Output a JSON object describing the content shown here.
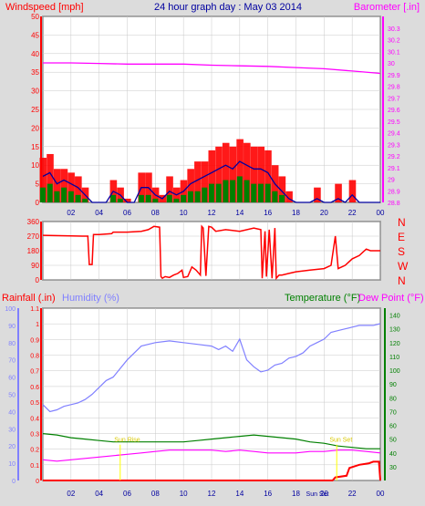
{
  "header": {
    "left": "Windspeed [mph]",
    "center": "24 hour graph day : May 03 2014",
    "right": "Barometer [.in]"
  },
  "colors": {
    "background": "#dcdcdc",
    "plot_bg": "#ffffff",
    "grid": "#c8c8c8",
    "wind_gust": "#ff0000",
    "wind_avg": "#0000a0",
    "wind_speed": "#008000",
    "barometer": "#ff00ff",
    "direction": "#ff0000",
    "humidity": "#8080ff",
    "temperature": "#008000",
    "dewpoint": "#ff00ff",
    "rain": "#ff0000",
    "sun": "#ffff00"
  },
  "x_ticks": [
    "02",
    "04",
    "06",
    "08",
    "10",
    "12",
    "14",
    "16",
    "18",
    "20",
    "22",
    "00"
  ],
  "chart_data": [
    {
      "type": "line",
      "panel": "wind-barometer",
      "xlabel": "hour",
      "ylabel_left": "Windspeed [mph]",
      "ylabel_right": "Barometer [.in]",
      "xlim": [
        0,
        24
      ],
      "ylim_left": [
        0,
        50
      ],
      "ylim_right": [
        28.8,
        30.4
      ],
      "yticks_left": [
        0,
        5,
        10,
        15,
        20,
        25,
        30,
        35,
        40,
        45,
        50
      ],
      "yticks_right": [
        "28.8",
        "28.9",
        "29",
        "29.1",
        "29.2",
        "29.3",
        "29.4",
        "29.5",
        "29.6",
        "29.7",
        "29.8",
        "29.9",
        "30",
        "30.1",
        "30.2",
        "30.3"
      ],
      "grid": true,
      "series": [
        {
          "name": "gust",
          "axis": "left",
          "x": [
            0,
            0.5,
            1,
            1.5,
            2,
            2.5,
            3,
            3.5,
            4,
            4.5,
            5,
            5.5,
            6,
            6.5,
            7,
            7.5,
            8,
            8.5,
            9,
            9.5,
            10,
            10.5,
            11,
            11.5,
            12,
            12.5,
            13,
            13.5,
            14,
            14.5,
            15,
            15.5,
            16,
            16.5,
            17,
            17.5,
            18,
            18.5,
            19,
            19.5,
            20,
            20.5,
            21,
            21.5,
            22,
            22.5,
            23,
            23.5,
            24
          ],
          "values": [
            12,
            13,
            9,
            9,
            8,
            7,
            4,
            0,
            0,
            0,
            6,
            4,
            1,
            0,
            8,
            8,
            4,
            2,
            7,
            4,
            6,
            9,
            11,
            11,
            14,
            15,
            16,
            15,
            17,
            16,
            15,
            15,
            14,
            10,
            7,
            3,
            0,
            0,
            0,
            4,
            0,
            0,
            5,
            0,
            6,
            0,
            0,
            0,
            0
          ]
        },
        {
          "name": "average",
          "axis": "left",
          "x": [
            0,
            0.5,
            1,
            1.5,
            2,
            2.5,
            3,
            3.5,
            4,
            4.5,
            5,
            5.5,
            6,
            6.5,
            7,
            7.5,
            8,
            8.5,
            9,
            9.5,
            10,
            10.5,
            11,
            11.5,
            12,
            12.5,
            13,
            13.5,
            14,
            14.5,
            15,
            15.5,
            16,
            16.5,
            17,
            17.5,
            18,
            18.5,
            19,
            19.5,
            20,
            20.5,
            21,
            21.5,
            22,
            22.5,
            23,
            23.5,
            24
          ],
          "values": [
            7,
            8,
            5,
            6,
            5,
            4,
            2,
            0,
            0,
            0,
            3,
            2,
            0,
            0,
            4,
            4,
            2,
            1,
            3,
            2,
            3,
            5,
            6,
            7,
            8,
            9,
            10,
            9,
            11,
            10,
            9,
            9,
            8,
            5,
            3,
            1,
            0,
            0,
            0,
            1,
            0,
            0,
            1,
            0,
            2,
            0,
            0,
            0,
            0
          ]
        },
        {
          "name": "speed",
          "axis": "left",
          "x": [
            0,
            0.5,
            1,
            1.5,
            2,
            2.5,
            3,
            3.5,
            4,
            4.5,
            5,
            5.5,
            6,
            6.5,
            7,
            7.5,
            8,
            8.5,
            9,
            9.5,
            10,
            10.5,
            11,
            11.5,
            12,
            12.5,
            13,
            13.5,
            14,
            14.5,
            15,
            15.5,
            16,
            16.5,
            17,
            17.5,
            18,
            18.5,
            19,
            19.5,
            20,
            20.5,
            21,
            21.5,
            22,
            22.5,
            23,
            23.5,
            24
          ],
          "values": [
            4,
            5,
            3,
            4,
            3,
            2,
            1,
            0,
            0,
            0,
            2,
            1,
            0,
            0,
            2,
            2,
            1,
            0,
            2,
            1,
            2,
            3,
            3,
            4,
            5,
            5,
            6,
            6,
            7,
            6,
            5,
            5,
            5,
            3,
            2,
            0,
            0,
            0,
            0,
            0,
            0,
            0,
            0,
            0,
            0,
            0,
            0,
            0,
            0
          ]
        },
        {
          "name": "barometer",
          "axis": "right",
          "x": [
            0,
            2,
            4,
            6,
            8,
            10,
            12,
            14,
            16,
            18,
            20,
            22,
            24
          ],
          "values": [
            30.0,
            30.0,
            29.995,
            29.99,
            29.99,
            29.99,
            29.98,
            29.975,
            29.97,
            29.96,
            29.95,
            29.93,
            29.91
          ]
        }
      ]
    },
    {
      "type": "line",
      "panel": "wind-direction",
      "xlabel": "hour",
      "ylabel": "direction",
      "xlim": [
        0,
        24
      ],
      "ylim": [
        0,
        360
      ],
      "yticks": [
        0,
        90,
        180,
        270,
        360
      ],
      "compass": [
        "N",
        "W",
        "S",
        "E",
        "N"
      ],
      "grid": true,
      "series": [
        {
          "name": "direction",
          "x": [
            0,
            2.8,
            3.2,
            3.3,
            3.5,
            3.6,
            4,
            4.9,
            5,
            6,
            7,
            7.5,
            7.9,
            8.3,
            8.4,
            8.5,
            8.7,
            9,
            9.3,
            9.6,
            9.9,
            10,
            10.3,
            10.6,
            10.9,
            11.2,
            11.3,
            11.4,
            11.6,
            11.8,
            12,
            12.3,
            13,
            14,
            15,
            15.5,
            15.6,
            15.8,
            15.9,
            16.1,
            16.3,
            16.5,
            16.6,
            16.8,
            17,
            17.5,
            18,
            19,
            20,
            20.5,
            20.8,
            21,
            21.5,
            22,
            22.5,
            23,
            23.3,
            24
          ],
          "values": [
            275,
            270,
            270,
            95,
            95,
            280,
            280,
            285,
            295,
            295,
            300,
            310,
            330,
            325,
            20,
            10,
            20,
            15,
            30,
            40,
            60,
            15,
            20,
            80,
            60,
            30,
            330,
            320,
            25,
            330,
            325,
            300,
            310,
            300,
            320,
            310,
            10,
            300,
            20,
            310,
            10,
            320,
            10,
            30,
            30,
            40,
            50,
            60,
            70,
            90,
            270,
            70,
            90,
            130,
            150,
            190,
            180,
            180
          ]
        }
      ]
    },
    {
      "type": "line",
      "panel": "humidity-temperature-rain",
      "xlabel": "hour",
      "labels": {
        "rainfall": "Rainfall (.in)",
        "humidity": "Humidity (%)",
        "temperature": "Temperature (°F)",
        "dewpoint": "Dew Point (°F)"
      },
      "xlim": [
        0,
        24
      ],
      "ylim_humidity": [
        0,
        100
      ],
      "ylim_rain": [
        0,
        1.1
      ],
      "ylim_temperature": [
        20,
        145
      ],
      "yticks_humidity": [
        0,
        10,
        20,
        30,
        40,
        50,
        60,
        70,
        80,
        90,
        100
      ],
      "yticks_rain": [
        "0",
        "0.1",
        "0.2",
        "0.3",
        "0.4",
        "0.5",
        "0.6",
        "0.7",
        "0.8",
        "0.9",
        "1",
        "1.1"
      ],
      "yticks_temperature": [
        30,
        40,
        50,
        60,
        70,
        80,
        90,
        100,
        110,
        120,
        130,
        140
      ],
      "grid": true,
      "annotations": [
        "Sun Rise",
        "Sun Set"
      ],
      "bottom_label": "Sun Set",
      "series": [
        {
          "name": "humidity",
          "x": [
            0,
            0.5,
            1,
            1.5,
            2,
            2.5,
            3,
            3.5,
            4,
            4.5,
            5,
            6,
            7,
            8,
            9,
            10,
            11,
            12,
            12.5,
            13,
            13.5,
            14,
            14.5,
            15,
            15.5,
            16,
            16.5,
            17,
            17.5,
            18,
            18.5,
            19,
            19.5,
            20,
            20.5,
            21,
            21.5,
            22,
            22.5,
            23,
            23.5,
            24
          ],
          "values": [
            44,
            40,
            41,
            43,
            44,
            45,
            47,
            50,
            54,
            58,
            60,
            70,
            78,
            80,
            81,
            80,
            79,
            78,
            76,
            78,
            75,
            82,
            70,
            66,
            63,
            64,
            67,
            68,
            71,
            72,
            74,
            78,
            80,
            82,
            86,
            87,
            88,
            89,
            90,
            90,
            90,
            91
          ]
        },
        {
          "name": "temperature",
          "x": [
            0,
            1,
            2,
            3,
            4,
            5,
            6,
            7,
            8,
            9,
            10,
            11,
            12,
            13,
            14,
            15,
            16,
            17,
            18,
            19,
            20,
            21,
            22,
            23,
            24
          ],
          "values": [
            54,
            53,
            51,
            50,
            49,
            48,
            48,
            48,
            48,
            48,
            48,
            49,
            50,
            51,
            52,
            53,
            52,
            51,
            50,
            48,
            47,
            45,
            44,
            43,
            43
          ]
        },
        {
          "name": "dewpoint",
          "x": [
            0,
            1,
            2,
            3,
            4,
            5,
            6,
            7,
            8,
            9,
            10,
            11,
            12,
            13,
            14,
            15,
            16,
            17,
            18,
            19,
            20,
            21,
            22,
            23,
            24
          ],
          "values": [
            35,
            34,
            35,
            36,
            37,
            38,
            39,
            40,
            41,
            42,
            42,
            42,
            42,
            41,
            42,
            41,
            40,
            40,
            40,
            41,
            41,
            42,
            42,
            41,
            40
          ]
        },
        {
          "name": "rainfall",
          "x": [
            0,
            20.6,
            20.8,
            21.6,
            21.8,
            22.5,
            23.2,
            23.5,
            23.9,
            24
          ],
          "values": [
            0,
            0,
            0.02,
            0.03,
            0.08,
            0.1,
            0.11,
            0.12,
            0.12,
            0
          ]
        }
      ]
    }
  ]
}
